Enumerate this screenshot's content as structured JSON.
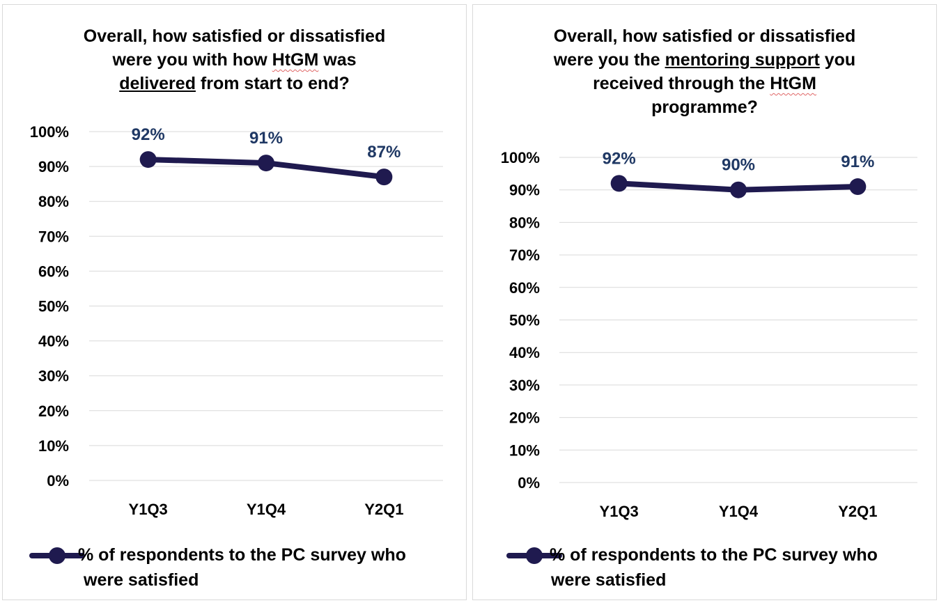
{
  "charts": [
    {
      "title_lines": [
        [
          {
            "t": "Overall, how satisfied or dissatisfied"
          }
        ],
        [
          {
            "t": "were you with how "
          },
          {
            "t": "HtGM",
            "squig": true
          },
          {
            "t": " was"
          }
        ],
        [
          {
            "t": "delivered",
            "u": true
          },
          {
            "t": " from start to end?"
          }
        ]
      ],
      "legend_line1": "% of respondents to the PC survey who",
      "legend_line2": "were satisfied"
    },
    {
      "title_lines": [
        [
          {
            "t": "Overall, how satisfied or dissatisfied"
          }
        ],
        [
          {
            "t": "were you the "
          },
          {
            "t": "mentoring support",
            "u": true
          },
          {
            "t": " you"
          }
        ],
        [
          {
            "t": "received through the "
          },
          {
            "t": "HtGM",
            "squig": true
          }
        ],
        [
          {
            "t": "programme?"
          }
        ]
      ],
      "legend_line1": "% of respondents to the PC survey who",
      "legend_line2": "were satisfied"
    }
  ],
  "chart_data": [
    {
      "type": "line",
      "title": "Overall, how satisfied or dissatisfied were you with how HtGM was delivered from start to end?",
      "categories": [
        "Y1Q3",
        "Y1Q4",
        "Y2Q1"
      ],
      "series": [
        {
          "name": "% of respondents to the PC survey who were satisfied",
          "values": [
            92,
            91,
            87
          ],
          "color": "#1f1a4f"
        }
      ],
      "data_labels": [
        "92%",
        "91%",
        "87%"
      ],
      "y_ticks": [
        "0%",
        "10%",
        "20%",
        "30%",
        "40%",
        "50%",
        "60%",
        "70%",
        "80%",
        "90%",
        "100%"
      ],
      "ylim": [
        0,
        100
      ],
      "grid": true,
      "legend_position": "bottom"
    },
    {
      "type": "line",
      "title": "Overall, how satisfied or dissatisfied were you the mentoring support you received through the HtGM programme?",
      "categories": [
        "Y1Q3",
        "Y1Q4",
        "Y2Q1"
      ],
      "series": [
        {
          "name": "% of respondents to the PC survey who were satisfied",
          "values": [
            92,
            90,
            91
          ],
          "color": "#1f1a4f"
        }
      ],
      "data_labels": [
        "92%",
        "90%",
        "91%"
      ],
      "y_ticks": [
        "0%",
        "10%",
        "20%",
        "30%",
        "40%",
        "50%",
        "60%",
        "70%",
        "80%",
        "90%",
        "100%"
      ],
      "ylim": [
        0,
        100
      ],
      "grid": true,
      "legend_position": "bottom"
    }
  ]
}
